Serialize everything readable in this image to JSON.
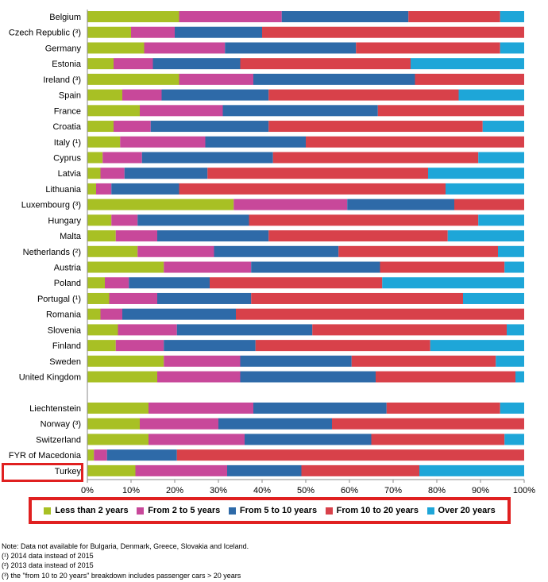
{
  "chart_data": {
    "type": "bar",
    "orientation": "horizontal",
    "stacked": "percent",
    "categories": [
      "Belgium",
      "Czech Republic (³)",
      "Germany",
      "Estonia",
      "Ireland (³)",
      "Spain",
      "France",
      "Croatia",
      "Italy (¹)",
      "Cyprus",
      "Latvia",
      "Lithuania",
      "Luxembourg (³)",
      "Hungary",
      "Malta",
      "Netherlands (²)",
      "Austria",
      "Poland",
      "Portugal (¹)",
      "Romania",
      "Slovenia",
      "Finland",
      "Sweden",
      "United Kingdom",
      "Liechtenstein",
      "Norway (³)",
      "Switzerland",
      "FYR of Macedonia",
      "Turkey"
    ],
    "gap_after_index": 23,
    "series": [
      {
        "name": "Less than 2 years",
        "color": "#a8c024",
        "values": [
          21,
          10,
          13,
          6,
          21,
          8,
          12,
          6,
          7.5,
          3.5,
          3,
          2,
          33.5,
          5.5,
          6.5,
          11.5,
          17.5,
          4,
          5,
          3,
          7,
          6.5,
          17.5,
          16,
          14,
          12,
          14,
          1.5,
          11
        ]
      },
      {
        "name": "From 2 to 5 years",
        "color": "#c8489a",
        "values": [
          23.5,
          10,
          18.5,
          9,
          17,
          9,
          19,
          8.5,
          19.5,
          9,
          5.5,
          3.5,
          26,
          6,
          9.5,
          17.5,
          20,
          5.5,
          11,
          5,
          13.5,
          11,
          17.5,
          19,
          24,
          18,
          22,
          3,
          21
        ]
      },
      {
        "name": "From 5 to 10 years",
        "color": "#2e6aa8",
        "values": [
          29,
          20,
          30,
          20,
          37,
          24.5,
          35.5,
          27,
          23,
          30,
          19,
          15.5,
          24.5,
          25.5,
          25.5,
          28.5,
          29.5,
          18.5,
          21.5,
          26,
          31,
          21,
          25.5,
          31,
          30.5,
          26,
          29,
          16,
          17
        ]
      },
      {
        "name": "From 10 to 20 years",
        "color": "#d8414a",
        "values": [
          21,
          60,
          33,
          39,
          25,
          43.5,
          33.5,
          49,
          50,
          47,
          50.5,
          61,
          16,
          52.5,
          41,
          36.5,
          28.5,
          39.5,
          48.5,
          66,
          44.5,
          40,
          33,
          32,
          26,
          44,
          30.5,
          79.5,
          27
        ]
      },
      {
        "name": "Over 20 years",
        "color": "#1ea6d8",
        "values": [
          5.5,
          0,
          5.5,
          26,
          0,
          15,
          0,
          9.5,
          0,
          10.5,
          22,
          18,
          0,
          10.5,
          17.5,
          6,
          4.5,
          32.5,
          14,
          0,
          4,
          21.5,
          6.5,
          2,
          5.5,
          0,
          4.5,
          0,
          24
        ]
      }
    ],
    "x_ticks": [
      "0%",
      "10%",
      "20%",
      "30%",
      "40%",
      "50%",
      "60%",
      "70%",
      "80%",
      "90%",
      "100%"
    ],
    "xlim": [
      0,
      100
    ],
    "grid": false,
    "legend_placement": "bottom",
    "highlighted_category": "Turkey"
  },
  "notes": [
    "Note:  Data not available for Bulgaria, Denmark, Greece, Slovakia and Iceland.",
    "(¹) 2014 data instead of 2015",
    "(²) 2013 data instead of 2015",
    "(³) the \"from 10 to 20 years\" breakdown includes passenger cars > 20 years"
  ]
}
